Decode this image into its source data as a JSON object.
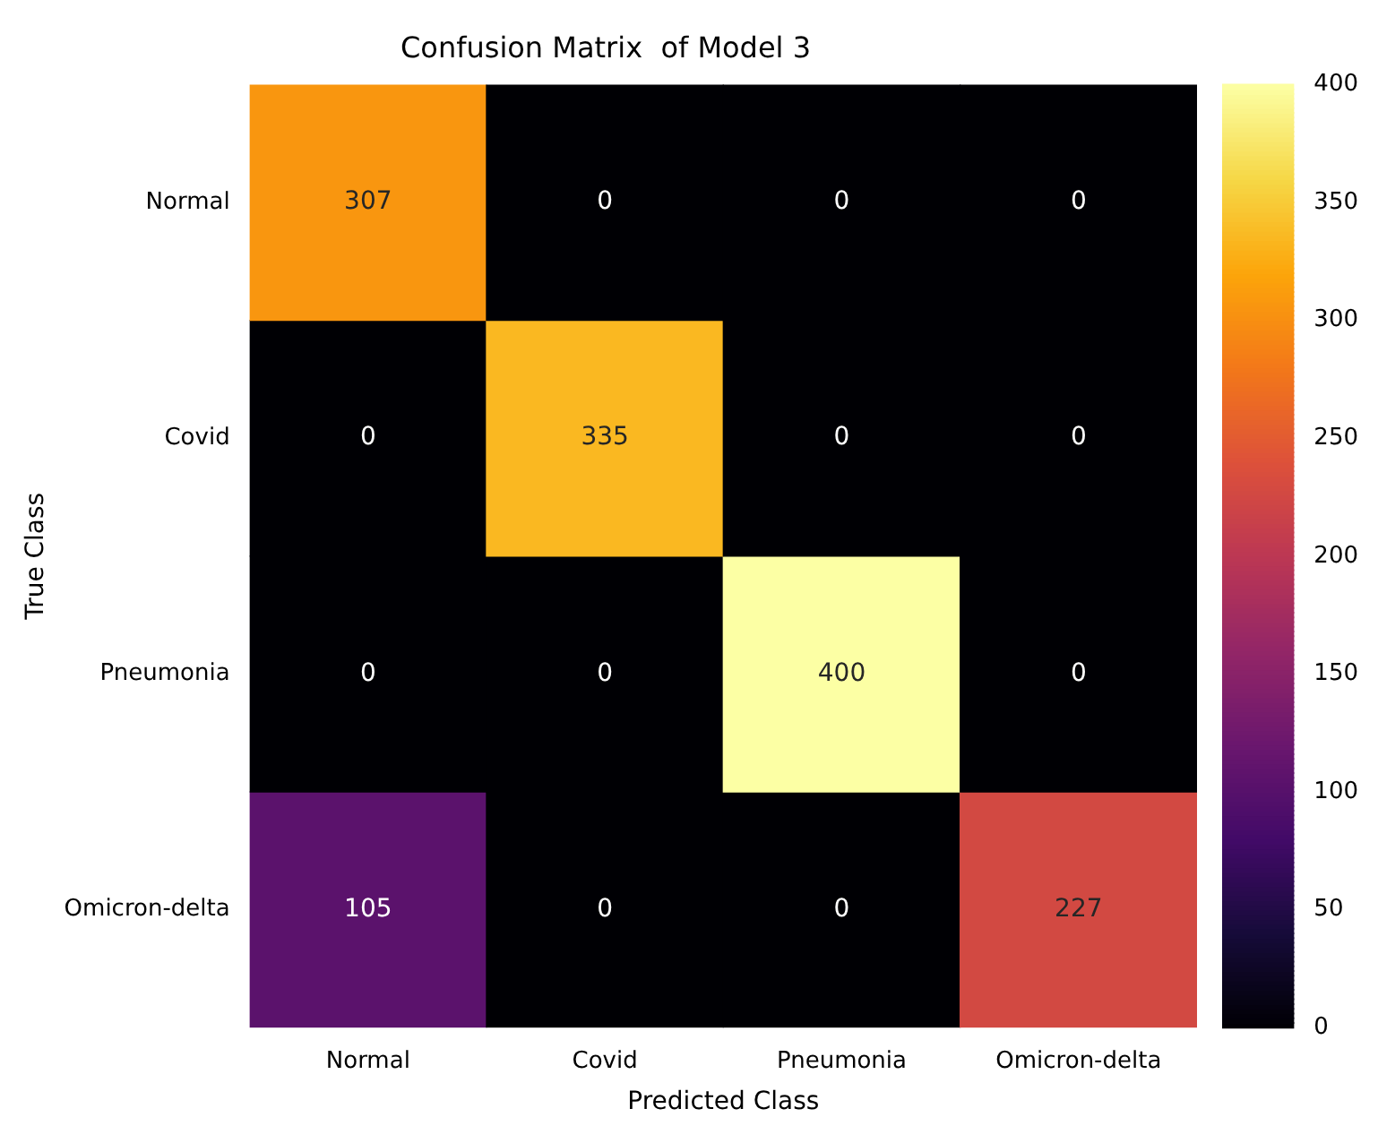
{
  "chart_data": {
    "type": "heatmap",
    "title": "Confusion Matrix  of Model 3",
    "xlabel": "Predicted Class",
    "ylabel": "True Class",
    "categories": [
      "Normal",
      "Covid",
      "Pneumonia",
      "Omicron-delta"
    ],
    "y_categories": [
      "Normal",
      "Covid",
      "Pneumonia",
      "Omicron-delta"
    ],
    "cells": [
      [
        307,
        0,
        0,
        0
      ],
      [
        0,
        335,
        0,
        0
      ],
      [
        0,
        0,
        400,
        0
      ],
      [
        105,
        0,
        0,
        227
      ]
    ],
    "clim": [
      0,
      400
    ],
    "cticks": [
      0,
      50,
      100,
      150,
      200,
      250,
      300,
      350,
      400
    ],
    "data_labels": true
  }
}
